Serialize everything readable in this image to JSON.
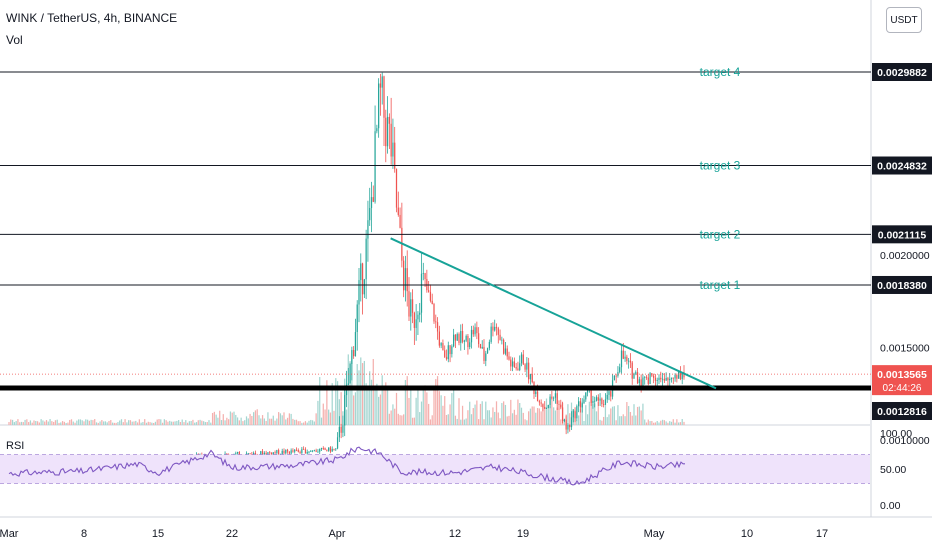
{
  "header": {
    "symbol": "WINK / TetherUS, 4h, BINANCE",
    "vol_label": "Vol",
    "currency_button": "USDT",
    "rsi_label": "RSI"
  },
  "colors": {
    "up": "#26a69a",
    "down": "#ef5350",
    "trendline": "#17a398",
    "target_text": "#17a398",
    "rsi_line": "#7e57c2",
    "rsi_band": "#efe3fb",
    "support": "#000000"
  },
  "chart_data": [
    {
      "type": "candlestick",
      "title": "WINK / TetherUS, 4h, BINANCE",
      "x_tick_labels": [
        "Mar",
        "8",
        "15",
        "22",
        "Apr",
        "12",
        "19",
        "May",
        "10",
        "17"
      ],
      "y_tick_labels": [
        "0.0020000",
        "0.0015000",
        "0.0010000"
      ],
      "ylim": [
        0.00092,
        0.0031
      ],
      "last_price": {
        "value": "0.0013565",
        "countdown": "02:44:26"
      },
      "horizontal_lines": [
        {
          "label": "target 4",
          "value": "0.0029882"
        },
        {
          "label": "target 3",
          "value": "0.0024832"
        },
        {
          "label": "target 2",
          "value": "0.0021115"
        },
        {
          "label": "target 1",
          "value": "0.0018380"
        },
        {
          "label": "",
          "value": "0.0012816",
          "style": "support"
        }
      ],
      "trendline": {
        "from": {
          "date": "Apr 6",
          "price": 0.00209
        },
        "to": {
          "date": "May 7",
          "price": 0.00128
        }
      },
      "price_path": [
        {
          "date": "Mar 1",
          "price": 0.00089
        },
        {
          "date": "Mar 15",
          "price": 0.0009
        },
        {
          "date": "Apr 1",
          "price": 0.00095
        },
        {
          "date": "Apr 2",
          "price": 0.00128
        },
        {
          "date": "Apr 3",
          "price": 0.00175
        },
        {
          "date": "Apr 4",
          "price": 0.00215
        },
        {
          "date": "Apr 5",
          "price": 0.00285
        },
        {
          "date": "Apr 6",
          "price": 0.0026
        },
        {
          "date": "Apr 7",
          "price": 0.00198
        },
        {
          "date": "Apr 8",
          "price": 0.00162
        },
        {
          "date": "Apr 9",
          "price": 0.00188
        },
        {
          "date": "Apr 10",
          "price": 0.00168
        },
        {
          "date": "Apr 11",
          "price": 0.00142
        },
        {
          "date": "Apr 12",
          "price": 0.00158
        },
        {
          "date": "Apr 13",
          "price": 0.00152
        },
        {
          "date": "Apr 14",
          "price": 0.0016
        },
        {
          "date": "Apr 15",
          "price": 0.00144
        },
        {
          "date": "Apr 16",
          "price": 0.00165
        },
        {
          "date": "Apr 17",
          "price": 0.0015
        },
        {
          "date": "Apr 18",
          "price": 0.00138
        },
        {
          "date": "Apr 19",
          "price": 0.00144
        },
        {
          "date": "Apr 20",
          "price": 0.00128
        },
        {
          "date": "Apr 21",
          "price": 0.00118
        },
        {
          "date": "Apr 22",
          "price": 0.00125
        },
        {
          "date": "Apr 23",
          "price": 0.00105
        },
        {
          "date": "Apr 24",
          "price": 0.00118
        },
        {
          "date": "Apr 25",
          "price": 0.00125
        },
        {
          "date": "Apr 26",
          "price": 0.00119
        },
        {
          "date": "Apr 27",
          "price": 0.00124
        },
        {
          "date": "Apr 28",
          "price": 0.00146
        },
        {
          "date": "Apr 29",
          "price": 0.00137
        },
        {
          "date": "Apr 30",
          "price": 0.00132
        },
        {
          "date": "May 1",
          "price": 0.00136
        },
        {
          "date": "May 2",
          "price": 0.0013
        },
        {
          "date": "May 3",
          "price": 0.00136
        },
        {
          "date": "May 4",
          "price": 0.001356
        }
      ]
    },
    {
      "type": "line",
      "title": "RSI",
      "y_tick_labels": [
        "100.00",
        "50.00",
        "0.00"
      ],
      "band": [
        30,
        70
      ],
      "ylim": [
        0,
        100
      ],
      "path": [
        {
          "date": "Mar 1",
          "value": 44
        },
        {
          "date": "Mar 8",
          "value": 47
        },
        {
          "date": "Mar 13",
          "value": 57
        },
        {
          "date": "Mar 15",
          "value": 45
        },
        {
          "date": "Mar 20",
          "value": 72
        },
        {
          "date": "Mar 22",
          "value": 52
        },
        {
          "date": "Mar 28",
          "value": 55
        },
        {
          "date": "Apr 1",
          "value": 63
        },
        {
          "date": "Apr 3",
          "value": 80
        },
        {
          "date": "Apr 5",
          "value": 72
        },
        {
          "date": "Apr 7",
          "value": 46
        },
        {
          "date": "Apr 12",
          "value": 45
        },
        {
          "date": "Apr 16",
          "value": 53
        },
        {
          "date": "Apr 20",
          "value": 42
        },
        {
          "date": "Apr 24",
          "value": 29
        },
        {
          "date": "Apr 28",
          "value": 60
        },
        {
          "date": "May 1",
          "value": 53
        },
        {
          "date": "May 4",
          "value": 56
        }
      ]
    }
  ]
}
